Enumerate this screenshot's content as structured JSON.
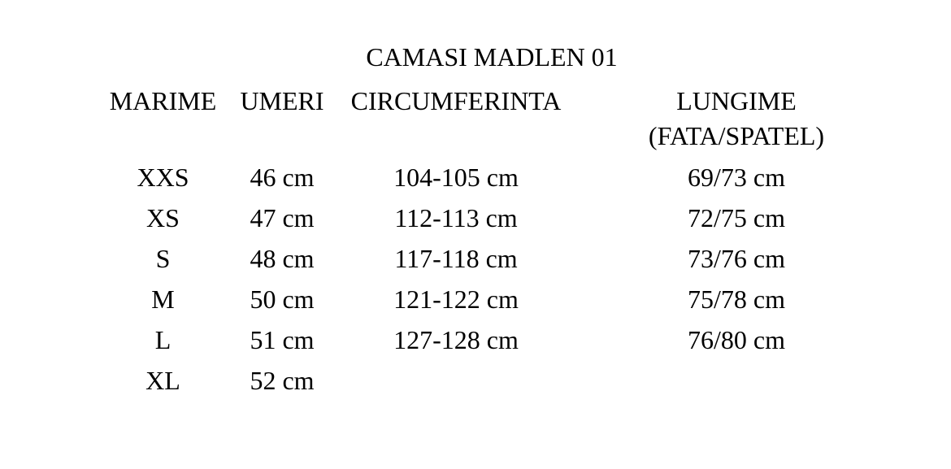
{
  "page": {
    "background_color": "#ffffff",
    "text_color": "#000000"
  },
  "chart_data": {
    "type": "table",
    "title": "CAMASI MADLEN 01",
    "columns": [
      "MARIME",
      "UMERI",
      "CIRCUMFERINTA",
      "LUNGIME (FATA/SPATEL)"
    ],
    "header": {
      "marime": "MARIME",
      "umeri": "UMERI",
      "circumferinta": "CIRCUMFERINTA",
      "lungime_line1": "LUNGIME",
      "lungime_line2": "(FATA/SPATEL)"
    },
    "rows": [
      {
        "marime": "XXS",
        "umeri": "46 cm",
        "circumferinta": "104-105 cm",
        "lungime": "69/73 cm"
      },
      {
        "marime": "XS",
        "umeri": "47 cm",
        "circumferinta": "112-113 cm",
        "lungime": "72/75 cm"
      },
      {
        "marime": "S",
        "umeri": "48 cm",
        "circumferinta": "117-118 cm",
        "lungime": "73/76 cm"
      },
      {
        "marime": "M",
        "umeri": "50 cm",
        "circumferinta": "121-122 cm",
        "lungime": "75/78 cm"
      },
      {
        "marime": "L",
        "umeri": "51 cm",
        "circumferinta": "127-128 cm",
        "lungime": "76/80 cm"
      },
      {
        "marime": "XL",
        "umeri": "52 cm",
        "circumferinta": "",
        "lungime": ""
      }
    ]
  }
}
